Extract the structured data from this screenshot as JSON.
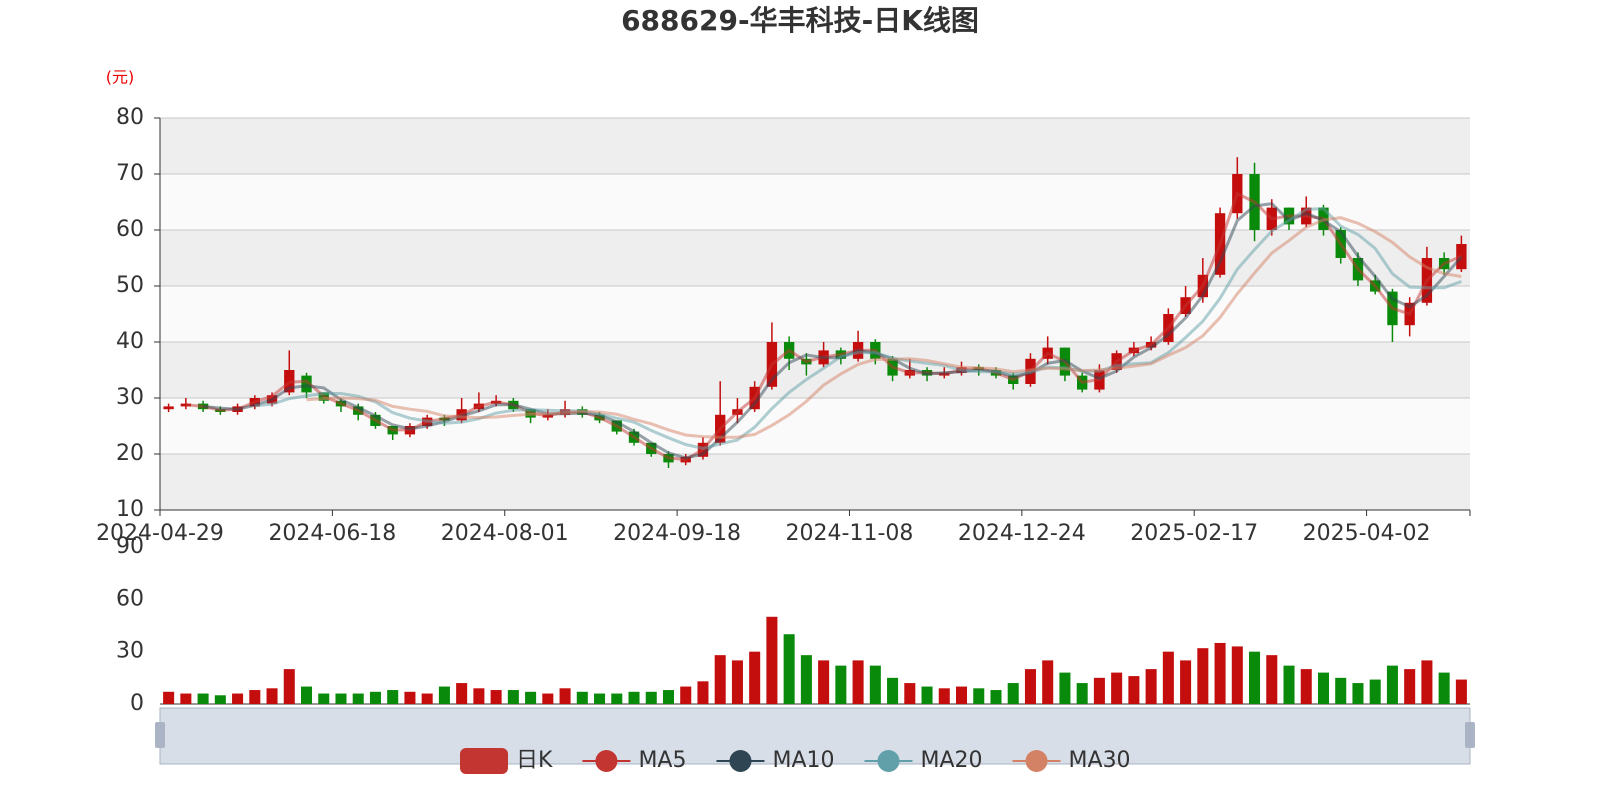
{
  "chart_data": {
    "type": "candlestick",
    "title": "688629-华丰科技-日K线图",
    "y_unit": "(元)",
    "categories": [
      "2024-04-29",
      null,
      null,
      null,
      null,
      null,
      null,
      null,
      null,
      null,
      "2024-06-18",
      null,
      null,
      null,
      null,
      null,
      null,
      null,
      null,
      null,
      "2024-08-01",
      null,
      null,
      null,
      null,
      null,
      null,
      null,
      null,
      null,
      "2024-09-18",
      null,
      null,
      null,
      null,
      null,
      null,
      null,
      null,
      null,
      "2024-11-08",
      null,
      null,
      null,
      null,
      null,
      null,
      null,
      null,
      null,
      "2024-12-24",
      null,
      null,
      null,
      null,
      null,
      null,
      null,
      null,
      null,
      "2025-02-17",
      null,
      null,
      null,
      null,
      null,
      null,
      null,
      null,
      null,
      "2025-04-02",
      null,
      null,
      null,
      null,
      null
    ],
    "ylim": [
      10,
      80
    ],
    "yticks": [
      10,
      20,
      30,
      40,
      50,
      60,
      70,
      80
    ],
    "grid": true,
    "up_color": "#c40e0e",
    "down_color": "#0a8a0a",
    "series": [
      {
        "name": "日K",
        "type": "candlestick",
        "color": "#c23531",
        "values": [
          [
            28,
            28.5,
            27.5,
            29
          ],
          [
            28.5,
            29,
            28,
            30
          ],
          [
            29,
            28,
            27.5,
            29.5
          ],
          [
            28,
            27.5,
            27,
            28.5
          ],
          [
            27.5,
            28.5,
            27,
            29
          ],
          [
            28.5,
            30,
            28,
            30.5
          ],
          [
            29,
            30.5,
            28.5,
            31
          ],
          [
            31,
            35,
            30.5,
            38.5
          ],
          [
            34,
            31,
            30,
            34.5
          ],
          [
            31,
            29.5,
            29,
            31
          ],
          [
            29.5,
            28.5,
            27.5,
            30
          ],
          [
            28.5,
            27,
            26,
            29
          ],
          [
            27,
            25,
            24.5,
            27.5
          ],
          [
            25,
            23.5,
            22.5,
            25
          ],
          [
            23.5,
            25,
            23,
            25.5
          ],
          [
            25,
            26.5,
            24.5,
            27
          ],
          [
            26.5,
            26,
            25,
            27
          ],
          [
            26,
            28,
            25.5,
            30
          ],
          [
            28,
            29,
            27.5,
            31
          ],
          [
            29,
            29.5,
            28.5,
            30.5
          ],
          [
            29.5,
            28,
            27.5,
            30
          ],
          [
            28,
            26.5,
            25.5,
            28
          ],
          [
            26.5,
            27,
            26,
            28
          ],
          [
            27,
            28,
            26.5,
            29.5
          ],
          [
            28,
            27,
            26.5,
            28.5
          ],
          [
            27,
            26,
            25.5,
            27.5
          ],
          [
            26,
            24,
            23.5,
            26
          ],
          [
            24,
            22,
            21.5,
            24.5
          ],
          [
            22,
            20,
            19.5,
            22
          ],
          [
            20,
            18.5,
            17.5,
            20.5
          ],
          [
            18.5,
            19.5,
            18,
            20
          ],
          [
            19.5,
            22,
            19,
            23
          ],
          [
            22,
            27,
            21.5,
            33
          ],
          [
            27,
            28,
            25.5,
            30
          ],
          [
            28,
            32,
            27.5,
            33
          ],
          [
            32,
            40,
            31.5,
            43.5
          ],
          [
            40,
            37,
            35,
            41
          ],
          [
            37,
            36,
            34,
            38
          ],
          [
            36,
            38.5,
            35.5,
            40
          ],
          [
            38.5,
            37,
            36,
            39
          ],
          [
            37,
            40,
            36.5,
            42
          ],
          [
            40,
            37,
            36,
            40.5
          ],
          [
            37,
            34,
            33,
            37.5
          ],
          [
            34,
            35,
            33.5,
            37
          ],
          [
            35,
            34,
            33,
            35.5
          ],
          [
            34,
            34.5,
            33.5,
            35.5
          ],
          [
            34.5,
            35.5,
            34,
            36.5
          ],
          [
            35.5,
            35,
            34,
            36
          ],
          [
            35,
            34,
            33.5,
            35.5
          ],
          [
            34,
            32.5,
            31.5,
            34.5
          ],
          [
            32.5,
            37,
            32,
            38
          ],
          [
            37,
            39,
            36,
            41
          ],
          [
            39,
            34,
            33,
            39
          ],
          [
            34,
            31.5,
            31,
            34.5
          ],
          [
            31.5,
            35,
            31,
            36
          ],
          [
            35,
            38,
            34.5,
            38.5
          ],
          [
            38,
            39,
            37.5,
            40
          ],
          [
            39,
            40,
            38.5,
            41
          ],
          [
            40,
            45,
            39.5,
            46
          ],
          [
            45,
            48,
            44.5,
            50
          ],
          [
            48,
            52,
            47,
            55
          ],
          [
            52,
            63,
            51.5,
            64
          ],
          [
            63,
            70,
            62,
            73
          ],
          [
            70,
            60,
            58,
            72
          ],
          [
            60,
            64,
            59,
            65.5
          ],
          [
            64,
            61,
            60,
            64
          ],
          [
            61,
            64,
            60.5,
            66
          ],
          [
            64,
            60,
            59,
            64.5
          ],
          [
            60,
            55,
            54,
            60.5
          ],
          [
            55,
            51,
            50,
            56
          ],
          [
            51,
            49,
            48.5,
            52
          ],
          [
            49,
            43,
            40,
            49.5
          ],
          [
            43,
            47,
            41,
            48
          ],
          [
            47,
            55,
            46.5,
            57
          ],
          [
            55,
            53,
            52,
            56
          ],
          [
            53,
            57.5,
            52.5,
            59
          ]
        ]
      },
      {
        "name": "MA5",
        "type": "line",
        "color": "#c23531",
        "values": [
          null,
          28.8,
          28.5,
          27.8,
          28,
          29.3,
          30.3,
          32.8,
          33,
          30.3,
          29,
          27.8,
          26,
          24.3,
          24.3,
          25.8,
          26.3,
          27,
          28.5,
          29.3,
          28.8,
          27.3,
          26.8,
          27.5,
          27.5,
          26.5,
          25,
          23,
          21,
          19.3,
          19,
          20.8,
          24.5,
          27.5,
          30,
          36,
          38.5,
          36.5,
          37.3,
          37.8,
          38.5,
          38.5,
          35.5,
          34.5,
          34.5,
          34.3,
          35,
          35.3,
          34.5,
          33.3,
          34.8,
          38,
          36.5,
          32.8,
          33.3,
          36.5,
          38.5,
          39.5,
          42.5,
          46.5,
          50,
          57.5,
          66.5,
          65,
          62,
          62.5,
          62.5,
          62,
          57.5,
          53,
          50,
          46,
          45,
          51,
          54,
          55.3
        ]
      },
      {
        "name": "MA10",
        "type": "line",
        "color": "#2f4554",
        "values": [
          null,
          null,
          28.5,
          28.2,
          28,
          28.7,
          29.7,
          31.8,
          32.2,
          31.8,
          29.7,
          28.3,
          26.8,
          25.2,
          24.5,
          25,
          25.8,
          26.8,
          27.7,
          28.8,
          28.8,
          28,
          27.2,
          27.2,
          27.3,
          27,
          25.7,
          24,
          22,
          20.2,
          19.3,
          20,
          22.8,
          25.7,
          29,
          33.3,
          36.3,
          37.7,
          37.2,
          37.2,
          38.5,
          38,
          37,
          35.3,
          34.3,
          34.5,
          34.7,
          35,
          34.8,
          33.8,
          34.5,
          36.2,
          36.7,
          34.8,
          33.5,
          34.8,
          37.3,
          39,
          41.3,
          44.3,
          48.3,
          54.3,
          61.7,
          64.3,
          64.7,
          61.7,
          63,
          61.7,
          59.7,
          55.3,
          51.7,
          47.7,
          46.3,
          48.3,
          51.7,
          55.2
        ]
      },
      {
        "name": "MA20",
        "type": "line",
        "color": "#61a0a8",
        "values": [
          null,
          null,
          null,
          null,
          null,
          28.6,
          28.9,
          29.9,
          30.4,
          30.8,
          30.8,
          30.3,
          29.3,
          27.4,
          26.4,
          25.9,
          25.5,
          25.7,
          26.3,
          27.3,
          27.8,
          27.9,
          27.8,
          27.7,
          27.7,
          27.1,
          26.4,
          25.7,
          24.2,
          22.9,
          21.7,
          21,
          21.8,
          22.5,
          24.8,
          28.1,
          31,
          33.3,
          35.3,
          37.4,
          38.1,
          38.1,
          37.1,
          36.6,
          36.2,
          35.8,
          35,
          34.7,
          34.7,
          34.3,
          34.6,
          35.5,
          35.4,
          34.8,
          34.8,
          35.8,
          36.1,
          36.3,
          38.1,
          40.8,
          43.7,
          47.8,
          53,
          56.5,
          59.8,
          61.7,
          63.7,
          63.8,
          60.7,
          59.2,
          56.7,
          52.2,
          49.8,
          49.7,
          49.7,
          50.8
        ]
      },
      {
        "name": "MA30",
        "type": "line",
        "color": "#d48265",
        "values": [
          null,
          null,
          null,
          null,
          null,
          null,
          null,
          null,
          29.7,
          29.9,
          30,
          29.9,
          29.6,
          28.5,
          28,
          27.6,
          26.8,
          26.6,
          26.5,
          26.6,
          26.9,
          27.1,
          27.2,
          27.3,
          27.6,
          27.5,
          27.1,
          26.2,
          25.4,
          24.3,
          23.4,
          23.1,
          23,
          23,
          23.5,
          25.1,
          27,
          29.4,
          32.3,
          34.3,
          36,
          36.9,
          36.9,
          37,
          36.7,
          36.1,
          35.5,
          35.4,
          35.2,
          34.7,
          35,
          35.3,
          35.2,
          34.9,
          35,
          35.3,
          35.7,
          36.1,
          37.6,
          39,
          41.1,
          44.4,
          48.6,
          52.3,
          55.9,
          58.1,
          60.5,
          61.8,
          62.2,
          61.2,
          59.7,
          57.8,
          55.2,
          53.3,
          52.2,
          51.7
        ]
      }
    ],
    "volume": {
      "ylim": [
        0,
        90
      ],
      "yticks": [
        0,
        30,
        60,
        90
      ],
      "values": [
        7,
        6,
        6,
        5,
        6,
        8,
        9,
        20,
        10,
        6,
        6,
        6,
        7,
        8,
        7,
        6,
        10,
        12,
        9,
        8,
        8,
        7,
        6,
        9,
        7,
        6,
        6,
        7,
        7,
        8,
        10,
        13,
        28,
        25,
        30,
        50,
        40,
        28,
        25,
        22,
        25,
        22,
        15,
        12,
        10,
        9,
        10,
        9,
        8,
        12,
        20,
        25,
        18,
        12,
        15,
        18,
        16,
        20,
        30,
        25,
        32,
        35,
        33,
        30,
        28,
        22,
        20,
        18,
        15,
        12,
        14,
        22,
        20,
        25,
        18,
        14
      ]
    }
  }
}
